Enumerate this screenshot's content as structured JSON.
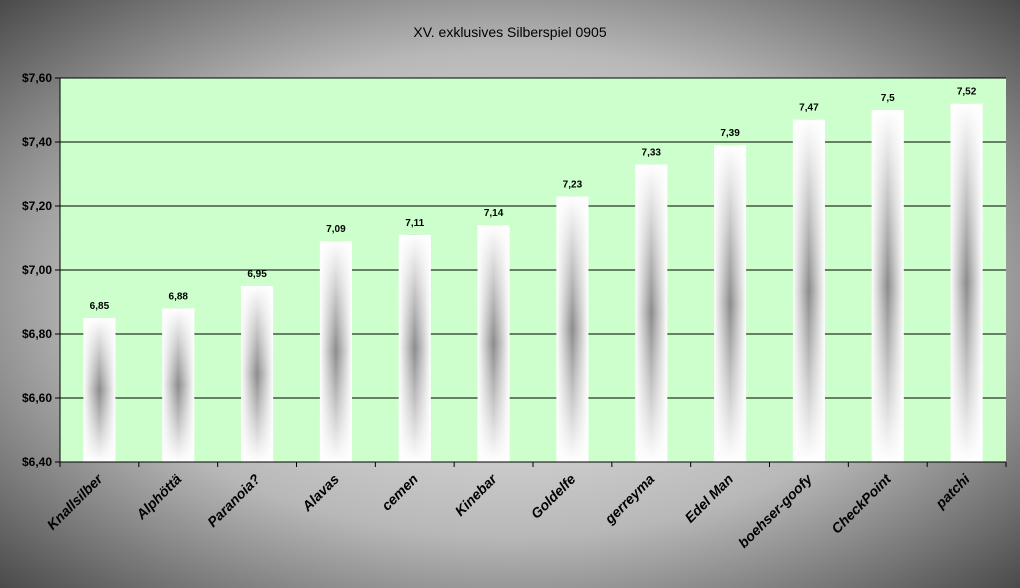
{
  "chart_data": {
    "type": "bar",
    "title": "XV. exklusives Silberspiel 0905",
    "xlabel": "",
    "ylabel": "",
    "categories": [
      "Knallsilber",
      "Alphöttä",
      "Paranoia?",
      "Alavas",
      "cemen",
      "Kinebar",
      "Goldelfe",
      "gerreyma",
      "Edel Man",
      "boehser-goofy",
      "CheckPoint",
      "patchi"
    ],
    "values": [
      6.85,
      6.88,
      6.95,
      7.09,
      7.11,
      7.14,
      7.23,
      7.33,
      7.39,
      7.47,
      7.5,
      7.52
    ],
    "data_labels": [
      "6,85",
      "6,88",
      "6,95",
      "7,09",
      "7,11",
      "7,14",
      "7,23",
      "7,33",
      "7,39",
      "7,47",
      "7,5",
      "7,52"
    ],
    "ylim": [
      6.4,
      7.6
    ],
    "yticks": [
      6.4,
      6.6,
      6.8,
      7.0,
      7.2,
      7.4,
      7.6
    ],
    "ytick_labels": [
      "$6,40",
      "$6,60",
      "$6,80",
      "$7,00",
      "$7,20",
      "$7,40",
      "$7,60"
    ],
    "grid": true,
    "legend": "none",
    "colors": {
      "plot_background": "#ccffcc",
      "bar_edge": "#ffffff",
      "bar_center": "#8c8c8c",
      "outer_background_center": "#f2f2f2",
      "outer_background_edge": "#3a3a3a",
      "gridline": "#000000"
    }
  }
}
